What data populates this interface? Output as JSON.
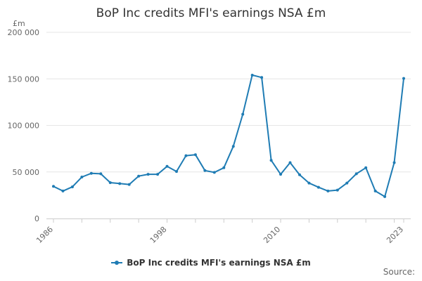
{
  "chart_data": {
    "type": "line",
    "title": "BoP Inc credits MFI's earnings NSA £m",
    "ylabel": "£m",
    "xlabel": "",
    "ylim": [
      0,
      200000
    ],
    "xlim": [
      1986,
      2023
    ],
    "y_ticks": [
      "0",
      "50 000",
      "100 000",
      "150 000",
      "200 000"
    ],
    "y_tick_values": [
      0,
      50000,
      100000,
      150000,
      200000
    ],
    "x_ticks": [
      "1986",
      "1998",
      "2010",
      "2023"
    ],
    "x_tick_values": [
      1986,
      1998,
      2010,
      2023
    ],
    "grid": true,
    "legend_position": "bottom",
    "source": "Source:",
    "colors": {
      "series": "#1f7cb4",
      "grid": "#e6e6e6",
      "axis": "#cccccc"
    },
    "series": [
      {
        "name": "BoP Inc credits MFI's earnings NSA £m",
        "x": [
          1986,
          1987,
          1988,
          1989,
          1990,
          1991,
          1992,
          1993,
          1994,
          1995,
          1996,
          1997,
          1998,
          1999,
          2000,
          2001,
          2002,
          2003,
          2004,
          2005,
          2006,
          2007,
          2008,
          2009,
          2010,
          2011,
          2012,
          2013,
          2014,
          2015,
          2016,
          2017,
          2018,
          2019,
          2020,
          2021,
          2022,
          2023
        ],
        "values": [
          34500,
          29500,
          34000,
          44500,
          48500,
          48000,
          38500,
          37500,
          36500,
          45500,
          47500,
          47500,
          56000,
          50500,
          67500,
          68500,
          51500,
          49500,
          54500,
          77500,
          112000,
          154000,
          151500,
          62500,
          47500,
          60000,
          47000,
          38000,
          33500,
          29500,
          30500,
          38000,
          48000,
          54500,
          29500,
          23500,
          60000,
          150500
        ]
      }
    ]
  }
}
